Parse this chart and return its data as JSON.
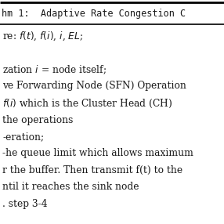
{
  "title_line": "hm 1:  Adaptive Rate Congestion C",
  "lines": [
    "re: $f(t)$, $f(i)$, $i$, $EL$;",
    "",
    "zation $i$ = node itself;",
    "ve Forwarding Node (SFN) Operation",
    "$f(i)$ which is the Cluster Head (CH)",
    "the operations",
    "-eration;",
    "-he queue limit which allows maximum",
    "r the buffer. Then transmit f(t) to the",
    "ntil it reaches the sink node",
    ". step 3-4"
  ],
  "bg_color": "#ffffff",
  "title_bg": "#ffffff",
  "top_border_color": "#000000",
  "sep_color": "#000000",
  "text_color": "#1a1a1a",
  "title_fontsize": 8.5,
  "body_fontsize": 8.8,
  "figsize": [
    2.86,
    2.86
  ],
  "dpi": 100
}
